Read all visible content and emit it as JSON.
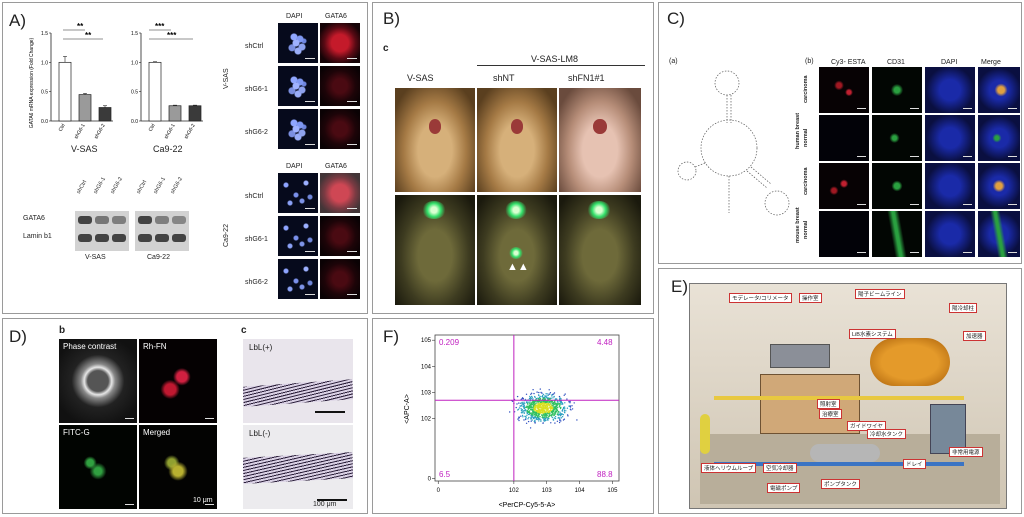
{
  "panel_letters": {
    "A": "A)",
    "B": "B)",
    "C": "C)",
    "D": "D)",
    "E": "E)",
    "F": "F)"
  },
  "panelA": {
    "chart_data": [
      {
        "type": "bar",
        "title": "",
        "ylabel": "GATA6 mRNA expression (Fold Change)",
        "xlabel": "V-SAS",
        "categories": [
          "Ctrl",
          "shG6-1",
          "shG6-2"
        ],
        "values": [
          1.0,
          0.45,
          0.23
        ],
        "error": [
          0.1,
          0.02,
          0.03
        ],
        "colors": [
          "#ffffff",
          "#9a9a9a",
          "#3a3a3a"
        ],
        "ylim": [
          0,
          1.5
        ],
        "yticks": [
          "0.0",
          "0.5",
          "1.0",
          "1.5"
        ],
        "significance": [
          "**",
          "**"
        ]
      },
      {
        "type": "bar",
        "title": "",
        "ylabel": "",
        "xlabel": "Ca9-22",
        "categories": [
          "Ctrl",
          "shG6-1",
          "shG6-2"
        ],
        "values": [
          1.0,
          0.26,
          0.26
        ],
        "error": [
          0.01,
          0.01,
          0.01
        ],
        "colors": [
          "#ffffff",
          "#9a9a9a",
          "#3a3a3a"
        ],
        "ylim": [
          0,
          1.5
        ],
        "yticks": [
          "0.0",
          "0.5",
          "1.0",
          "1.5"
        ],
        "significance": [
          "***",
          "***"
        ]
      }
    ],
    "blot": {
      "lanes": [
        "shCtrl",
        "shG6-1",
        "shG6-2",
        "shCtrl",
        "shG6-1",
        "shG6-2"
      ],
      "rows": [
        "GATA6",
        "Lamin b1"
      ],
      "groups": [
        "V-SAS",
        "Ca9-22"
      ]
    },
    "micro": {
      "headers": [
        "DAPI",
        "GATA6"
      ],
      "top_rows": [
        "shCtrl",
        "shG6-1",
        "shG6-2"
      ],
      "bottom_rows": [
        "shCtrl",
        "shG6-1",
        "shG6-2"
      ],
      "top_group": "V-SAS",
      "bottom_group": "Ca9-22"
    }
  },
  "panelB": {
    "sub": "c",
    "group_title": "V-SAS-LM8",
    "columns": [
      "V-SAS",
      "shNT",
      "shFN1#1"
    ]
  },
  "panelC": {
    "sub_a": "(a)",
    "sub_b": "(b)",
    "headers": [
      "Cy3- ESTA",
      "CD31",
      "DAPI",
      "Merge"
    ],
    "row_groups": [
      "human breast",
      "mouse breast"
    ],
    "rows": [
      "carcinoma",
      "normal",
      "carcinoma",
      "normal"
    ]
  },
  "panelD": {
    "sub_b": "b",
    "sub_c": "c",
    "tiles": [
      "Phase contrast",
      "Rh-FN",
      "FITC-G",
      "Merged"
    ],
    "scale_b": "10 μm",
    "lbl_plus": "LbL(+)",
    "lbl_minus": "LbL(-)",
    "scale_c": "100 μm"
  },
  "panelE": {
    "callouts": [
      "モデレータ/コリメータ",
      "操作室",
      "陽子ビームライン",
      "陽冷却柱",
      "加速器",
      "LiB水素システム",
      "照射室",
      "治療室",
      "ガイドワイヤ",
      "冷却水タンク",
      "液体ヘリウムループ",
      "空気冷却器",
      "電磁ポンプ",
      "ポンプタンク",
      "ドレイ",
      "非常用電源"
    ]
  },
  "panelF": {
    "chart_data": {
      "type": "scatter",
      "title": "",
      "xlabel": "<PerCP-Cy5-5-A>",
      "ylabel": "<APC-A>",
      "xticks": [
        "0",
        "10^2",
        "10^3",
        "10^4",
        "10^5"
      ],
      "yticks": [
        "0",
        "10^2",
        "10^3",
        "10^4",
        "10^5"
      ],
      "quadrants": {
        "UL": "0.209",
        "UR": "4.48",
        "LL": "6.5",
        "LR": "88.8"
      },
      "gate": {
        "x": 100,
        "y": 500
      },
      "cluster_center": {
        "x": 800,
        "y": 250
      },
      "scale": "log"
    }
  }
}
